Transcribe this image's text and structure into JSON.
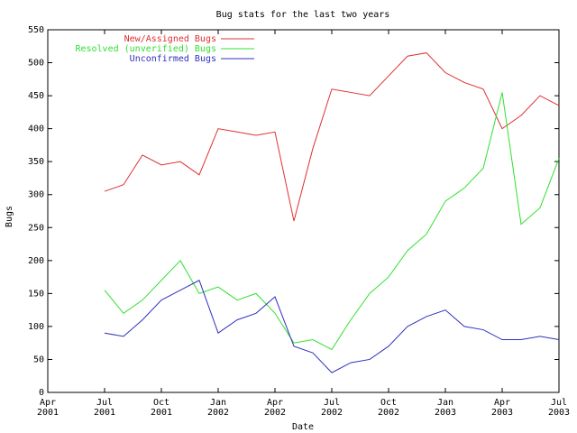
{
  "chart_data": {
    "type": "line",
    "title": "Bug stats for the last two years",
    "x_label": "Date",
    "y_label": "Bugs",
    "x": [
      "2001-07",
      "2001-08",
      "2001-09",
      "2001-10",
      "2001-11",
      "2001-12",
      "2002-01",
      "2002-02",
      "2002-03",
      "2002-04",
      "2002-05",
      "2002-06",
      "2002-07",
      "2002-08",
      "2002-09",
      "2002-10",
      "2002-11",
      "2002-12",
      "2003-01",
      "2003-02",
      "2003-03",
      "2003-04",
      "2003-05",
      "2003-06",
      "2003-07"
    ],
    "series": [
      {
        "name": "New/Assigned Bugs",
        "color": "#e03030",
        "values": [
          305,
          315,
          360,
          345,
          350,
          330,
          400,
          395,
          390,
          395,
          260,
          370,
          460,
          455,
          450,
          480,
          510,
          515,
          485,
          470,
          460,
          400,
          420,
          450,
          435
        ]
      },
      {
        "name": "Resolved (unverified) Bugs",
        "color": "#30e030",
        "values": [
          155,
          120,
          140,
          170,
          200,
          150,
          160,
          140,
          150,
          120,
          75,
          80,
          65,
          110,
          150,
          175,
          215,
          240,
          290,
          310,
          340,
          455,
          255,
          280,
          355
        ]
      },
      {
        "name": "Unconfirmed Bugs",
        "color": "#3030c0",
        "values": [
          90,
          85,
          110,
          140,
          155,
          170,
          90,
          110,
          120,
          145,
          70,
          60,
          30,
          45,
          50,
          70,
          100,
          115,
          125,
          100,
          95,
          80,
          80,
          85,
          80
        ]
      }
    ],
    "xlim": [
      "2001-04",
      "2003-07"
    ],
    "xticks": [
      {
        "value": "2001-04",
        "label": "Apr 2001"
      },
      {
        "value": "2001-07",
        "label": "Jul 2001"
      },
      {
        "value": "2001-10",
        "label": "Oct 2001"
      },
      {
        "value": "2002-01",
        "label": "Jan 2002"
      },
      {
        "value": "2002-04",
        "label": "Apr 2002"
      },
      {
        "value": "2002-07",
        "label": "Jul 2002"
      },
      {
        "value": "2002-10",
        "label": "Oct 2002"
      },
      {
        "value": "2003-01",
        "label": "Jan 2003"
      },
      {
        "value": "2003-04",
        "label": "Apr 2003"
      },
      {
        "value": "2003-07",
        "label": "Jul 2003"
      }
    ],
    "ylim": [
      0,
      550
    ],
    "yticks": [
      0,
      50,
      100,
      150,
      200,
      250,
      300,
      350,
      400,
      450,
      500,
      550
    ],
    "legend": "top-left",
    "grid": false
  }
}
